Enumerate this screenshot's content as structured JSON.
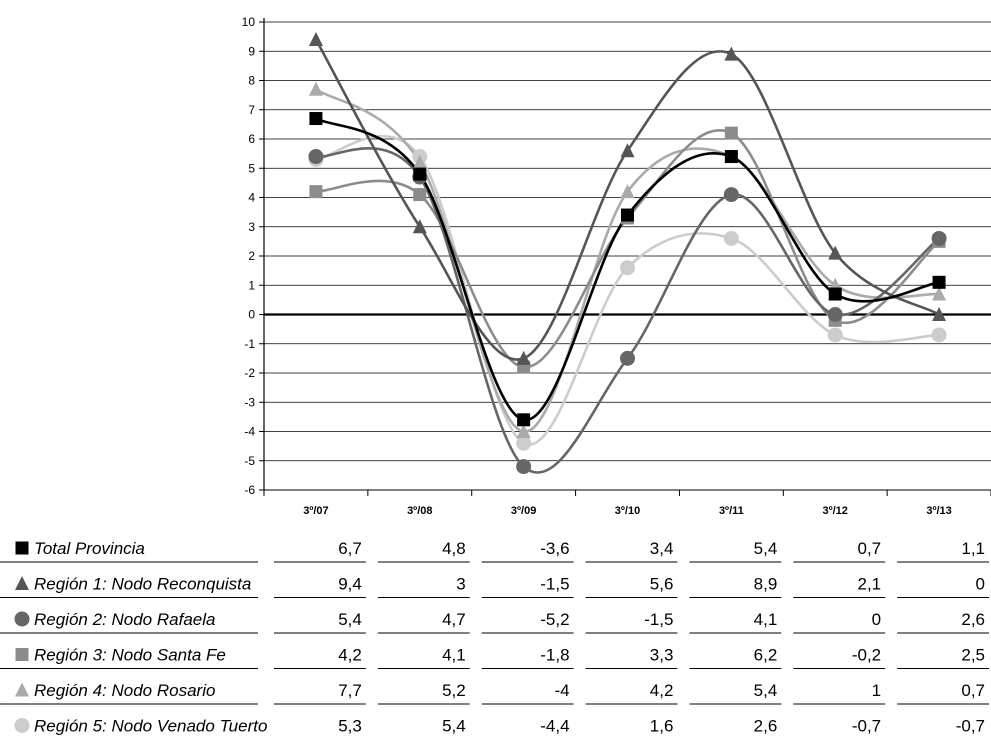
{
  "chart_data": {
    "type": "line",
    "categories": [
      "3º/07",
      "3º/08",
      "3º/09",
      "3º/10",
      "3º/11",
      "3º/12",
      "3º/13"
    ],
    "ylim": [
      -6,
      10
    ],
    "yticks": [
      -6,
      -5,
      -4,
      -3,
      -2,
      -1,
      0,
      1,
      2,
      3,
      4,
      5,
      6,
      7,
      8,
      9,
      10
    ],
    "grid": true,
    "legend": "data table below chart",
    "series": [
      {
        "name": "Total Provincia",
        "marker": "square",
        "color": "#000000",
        "values": [
          6.7,
          4.8,
          -3.6,
          3.4,
          5.4,
          0.7,
          1.1
        ],
        "labels": [
          "6,7",
          "4,8",
          "-3,6",
          "3,4",
          "5,4",
          "0,7",
          "1,1"
        ]
      },
      {
        "name": "Región 1: Nodo Reconquista",
        "marker": "triangle",
        "color": "#555555",
        "values": [
          9.4,
          3,
          -1.5,
          5.6,
          8.9,
          2.1,
          0
        ],
        "labels": [
          "9,4",
          "3",
          "-1,5",
          "5,6",
          "8,9",
          "2,1",
          "0"
        ]
      },
      {
        "name": "Región 2: Nodo Rafaela",
        "marker": "circle",
        "color": "#666666",
        "values": [
          5.4,
          4.7,
          -5.2,
          -1.5,
          4.1,
          0,
          2.6
        ],
        "labels": [
          "5,4",
          "4,7",
          "-5,2",
          "-1,5",
          "4,1",
          "0",
          "2,6"
        ]
      },
      {
        "name": "Región 3: Nodo Santa Fe",
        "marker": "square",
        "color": "#8c8c8c",
        "values": [
          4.2,
          4.1,
          -1.8,
          3.3,
          6.2,
          -0.2,
          2.5
        ],
        "labels": [
          "4,2",
          "4,1",
          "-1,8",
          "3,3",
          "6,2",
          "-0,2",
          "2,5"
        ]
      },
      {
        "name": "Región 4: Nodo Rosario",
        "marker": "triangle",
        "color": "#aaaaaa",
        "values": [
          7.7,
          5.2,
          -4,
          4.2,
          5.4,
          1,
          0.7
        ],
        "labels": [
          "7,7",
          "5,2",
          "-4",
          "4,2",
          "5,4",
          "1",
          "0,7"
        ]
      },
      {
        "name": "Región 5: Nodo Venado Tuerto",
        "marker": "circle",
        "color": "#cccccc",
        "values": [
          5.3,
          5.4,
          -4.4,
          1.6,
          2.6,
          -0.7,
          -0.7
        ],
        "labels": [
          "5,3",
          "5,4",
          "-4,4",
          "1,6",
          "2,6",
          "-0,7",
          "-0,7"
        ]
      }
    ]
  }
}
